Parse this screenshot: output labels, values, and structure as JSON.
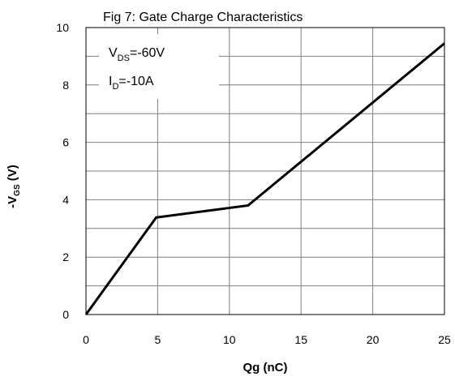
{
  "chart_data": {
    "type": "line",
    "title": "Fig 7: Gate Charge  Characteristics",
    "xlabel": "Qg (nC)",
    "ylabel_main": "-V",
    "ylabel_sub": "GS",
    "ylabel_unit": " (V)",
    "xlim": [
      0,
      25
    ],
    "ylim": [
      0,
      10
    ],
    "x_ticks": [
      0,
      5,
      10,
      15,
      20,
      25
    ],
    "y_ticks": [
      0,
      2,
      4,
      6,
      8,
      10
    ],
    "grid": true,
    "annotations": [
      {
        "main": "V",
        "sub": "DS",
        "rest": "=-60V"
      },
      {
        "main": "I",
        "sub": "D",
        "rest": "=-10A"
      }
    ],
    "series": [
      {
        "x": [
          0,
          4.9,
          11.3,
          25
        ],
        "y": [
          0,
          3.38,
          3.8,
          9.45
        ]
      }
    ]
  },
  "colors": {
    "line": "#000000",
    "grid": "#7f7f7f",
    "frame": "#000000",
    "background": "#ffffff"
  }
}
